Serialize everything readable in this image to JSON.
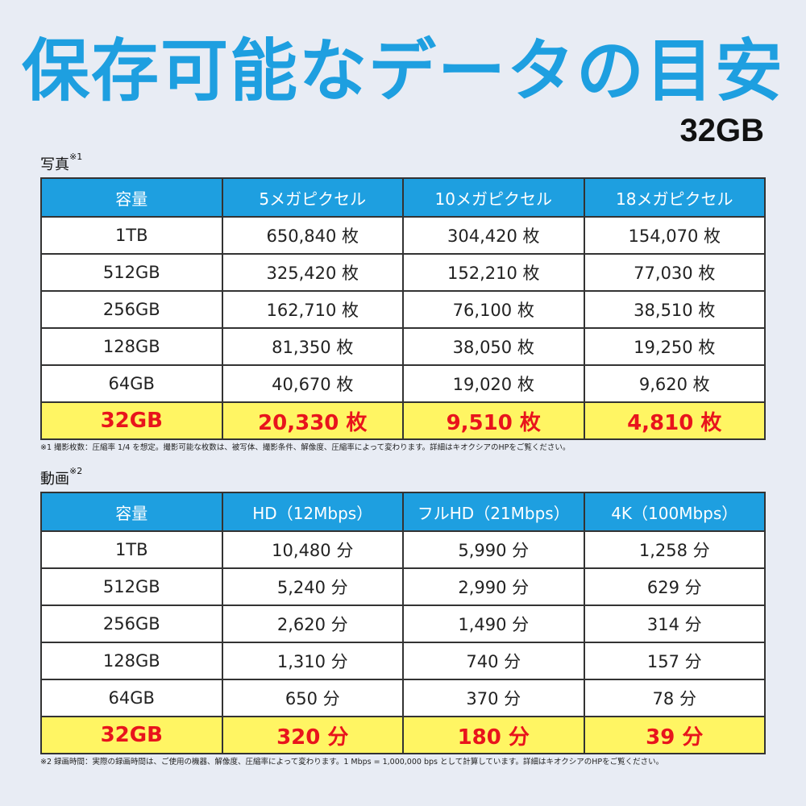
{
  "title": "保存可能なデータの目安",
  "capacity": "32GB",
  "photo": {
    "label": "写真",
    "label_mark": "※1",
    "headers": [
      "容量",
      "5メガピクセル",
      "10メガピクセル",
      "18メガピクセル"
    ],
    "rows": [
      [
        "1TB",
        "650,840 枚",
        "304,420 枚",
        "154,070 枚"
      ],
      [
        "512GB",
        "325,420 枚",
        "152,210 枚",
        "77,030 枚"
      ],
      [
        "256GB",
        "162,710 枚",
        "76,100 枚",
        "38,510 枚"
      ],
      [
        "128GB",
        "81,350 枚",
        "38,050 枚",
        "19,250 枚"
      ],
      [
        "64GB",
        "40,670 枚",
        "19,020 枚",
        "9,620 枚"
      ]
    ],
    "highlight": [
      "32GB",
      "20,330 枚",
      "9,510 枚",
      "4,810 枚"
    ],
    "note": "※1 撮影枚数：圧縮率 1/4 を想定。撮影可能な枚数は、被写体、撮影条件、解像度、圧縮率によって変わります。詳細はキオクシアのHPをご覧ください。"
  },
  "video": {
    "label": "動画",
    "label_mark": "※2",
    "headers": [
      "容量",
      "HD（12Mbps）",
      "フルHD（21Mbps）",
      "4K（100Mbps）"
    ],
    "rows": [
      [
        "1TB",
        "10,480 分",
        "5,990 分",
        "1,258 分"
      ],
      [
        "512GB",
        "5,240 分",
        "2,990 分",
        "629 分"
      ],
      [
        "256GB",
        "2,620 分",
        "1,490 分",
        "314 分"
      ],
      [
        "128GB",
        "1,310 分",
        "740 分",
        "157 分"
      ],
      [
        "64GB",
        "650 分",
        "370 分",
        "78 分"
      ]
    ],
    "highlight": [
      "32GB",
      "320 分",
      "180 分",
      "39 分"
    ],
    "note": "※2 録画時間：実際の録画時間は、ご使用の機器、解像度、圧縮率によって変わります。1 Mbps = 1,000,000 bps として計算しています。詳細はキオクシアのHPをご覧ください。"
  },
  "colors": {
    "accent": "#1e9fe0",
    "highlight_bg": "#fff563",
    "highlight_text": "#e8141c",
    "background": "#e8ecf4"
  }
}
